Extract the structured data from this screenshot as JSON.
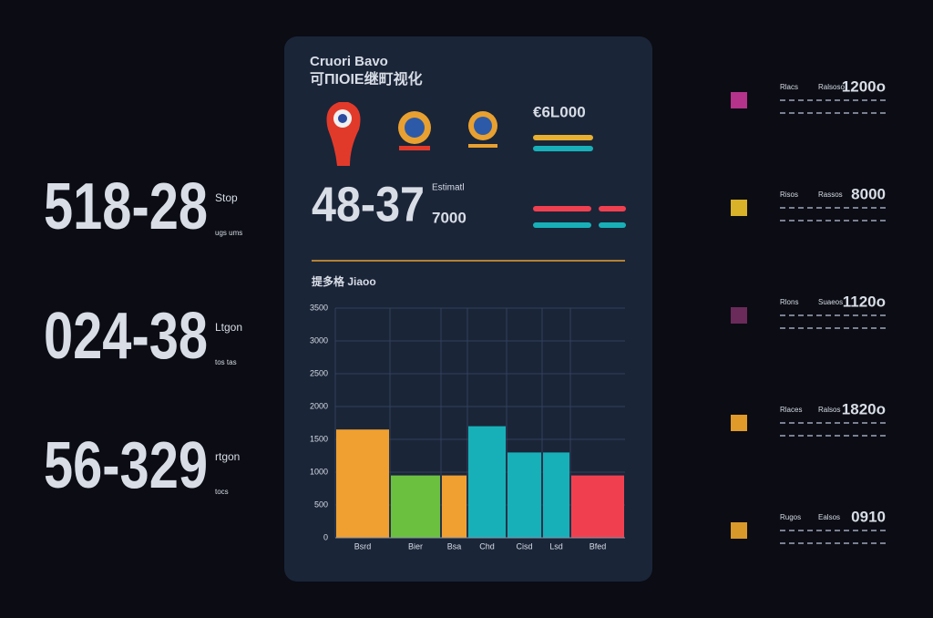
{
  "left_scores": [
    {
      "score": "518-28",
      "label": "Stop",
      "note": "ugs ums",
      "color": "#1aa8b5"
    },
    {
      "score": "024-38",
      "label": "Ltgon",
      "note": "tos tas",
      "color": "#7cc241"
    },
    {
      "score": "56-329",
      "label": "rtgon",
      "note": "tocs",
      "color": "#f07d3a"
    }
  ],
  "panel": {
    "title": "Cruori Bavo",
    "subtitle": "可ΠΙΟΙΕ继町视化",
    "score": "48-37",
    "score_label": "Estimatl",
    "score_value": "7000",
    "total": "€6L000",
    "chart_heading": "提多格 Jiaoo"
  },
  "chart_data": {
    "type": "bar",
    "categories": [
      "Bsrd",
      "Bier",
      "Bsa",
      "Chd",
      "Cisd",
      "Lsd",
      "Bfed"
    ],
    "values": [
      1650,
      950,
      950,
      1700,
      1300,
      1300,
      950
    ],
    "colors": [
      "#f0a030",
      "#6cc040",
      "#f0a030",
      "#18b0b8",
      "#18b0b8",
      "#18b0b8",
      "#f04050"
    ],
    "ylim": [
      0,
      3500
    ],
    "yticks": [
      0,
      500,
      1000,
      1500,
      2000,
      2500,
      3000,
      3500
    ],
    "grid": true
  },
  "legend": [
    {
      "label": "Rlacs",
      "sub": "Ralsoso",
      "value": "1200o",
      "color": "#b5338a",
      "value_color": "#f06040"
    },
    {
      "label": "Risos",
      "sub": "Rassos",
      "value": "8000",
      "color": "#d9b22a",
      "value_color": "#f07838"
    },
    {
      "label": "Rlons",
      "sub": "Suaeos",
      "value": "1120o",
      "color": "#6a2a5a",
      "value_color": "#b8d040"
    },
    {
      "label": "Rlaces",
      "sub": "Ralsos",
      "value": "1820o",
      "color": "#e09a2a",
      "value_color": "#20b0b0"
    },
    {
      "label": "Rugos",
      "sub": "Ealsos",
      "value": "0910",
      "color": "#d9982a",
      "value_color": "#20b0b8"
    }
  ]
}
